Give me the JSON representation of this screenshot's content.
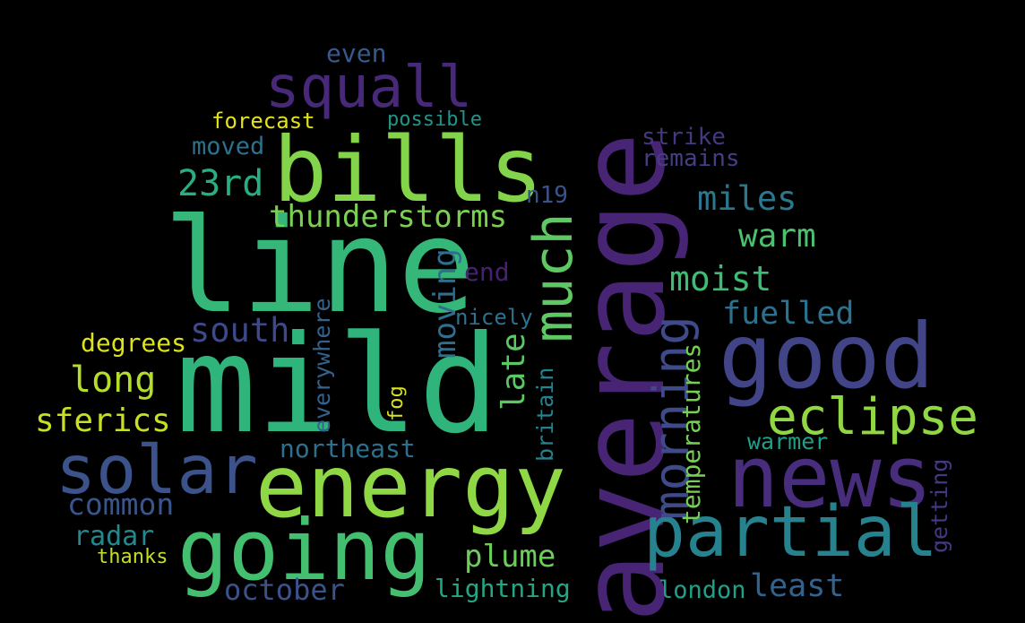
{
  "words": [
    {
      "text": "mild",
      "color": "#2fb47c"
    },
    {
      "text": "line",
      "color": "#35b779"
    },
    {
      "text": "average",
      "color": "#482475"
    },
    {
      "text": "bills",
      "color": "#84d44b"
    },
    {
      "text": "energy",
      "color": "#8fd744"
    },
    {
      "text": "going",
      "color": "#44bf70"
    },
    {
      "text": "good",
      "color": "#414487"
    },
    {
      "text": "news",
      "color": "#472d7b"
    },
    {
      "text": "solar",
      "color": "#3b528b"
    },
    {
      "text": "partial",
      "color": "#26828e"
    },
    {
      "text": "squall",
      "color": "#482878"
    },
    {
      "text": "eclipse",
      "color": "#90d743"
    },
    {
      "text": "much",
      "color": "#5ec962"
    },
    {
      "text": "morning",
      "color": "#3e4a89"
    },
    {
      "text": "thunderstorms",
      "color": "#7ad151"
    },
    {
      "text": "miles",
      "color": "#2a788e"
    },
    {
      "text": "warm",
      "color": "#4ac16d"
    },
    {
      "text": "moist",
      "color": "#3dbc74"
    },
    {
      "text": "fuelled",
      "color": "#2c728e"
    },
    {
      "text": "23rd",
      "color": "#29af7f"
    },
    {
      "text": "south",
      "color": "#3e4989"
    },
    {
      "text": "long",
      "color": "#b5de2b"
    },
    {
      "text": "sferics",
      "color": "#c8e020"
    },
    {
      "text": "degrees",
      "color": "#dde318"
    },
    {
      "text": "common",
      "color": "#39568c"
    },
    {
      "text": "radar",
      "color": "#23898e"
    },
    {
      "text": "thanks",
      "color": "#c2df23"
    },
    {
      "text": "plume",
      "color": "#6ccd5a"
    },
    {
      "text": "october",
      "color": "#3b528b"
    },
    {
      "text": "lightning",
      "color": "#22a785"
    },
    {
      "text": "london",
      "color": "#1fa088"
    },
    {
      "text": "least",
      "color": "#33638d"
    },
    {
      "text": "northeast",
      "color": "#2d708e"
    },
    {
      "text": "warmer",
      "color": "#1f9f88"
    },
    {
      "text": "late",
      "color": "#5cc863"
    },
    {
      "text": "moving",
      "color": "#2e6e8e"
    },
    {
      "text": "end",
      "color": "#482173"
    },
    {
      "text": "nicely",
      "color": "#2d718e"
    },
    {
      "text": "n19",
      "color": "#3a538b"
    },
    {
      "text": "britain",
      "color": "#26828e"
    },
    {
      "text": "temperatures",
      "color": "#75d054"
    },
    {
      "text": "getting",
      "color": "#453781"
    },
    {
      "text": "everywhere",
      "color": "#33638d"
    },
    {
      "text": "fog",
      "color": "#d8e219"
    },
    {
      "text": "strike",
      "color": "#453882"
    },
    {
      "text": "remains",
      "color": "#433e85"
    },
    {
      "text": "moved",
      "color": "#2c728e"
    },
    {
      "text": "forecast",
      "color": "#e2e418"
    },
    {
      "text": "possible",
      "color": "#1f958b"
    },
    {
      "text": "even",
      "color": "#38598c"
    }
  ]
}
